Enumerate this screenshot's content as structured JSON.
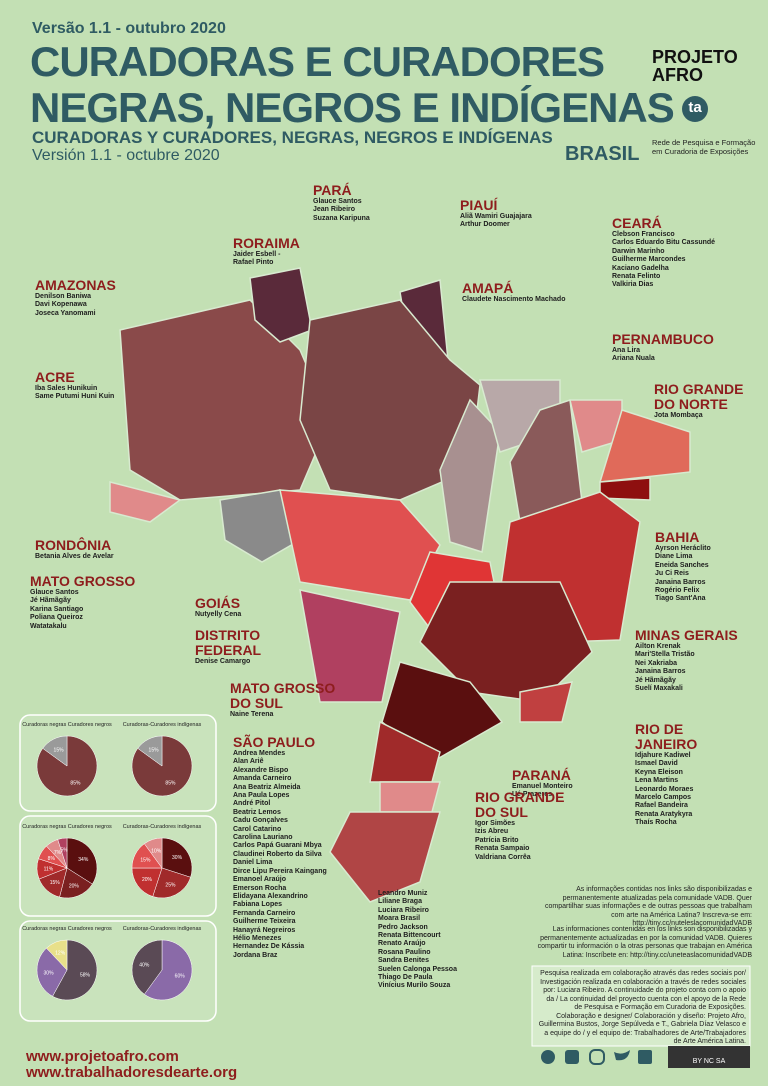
{
  "header": {
    "version_pt": "Versão 1.1 - outubro 2020",
    "title_line1": "CURADORAS E CURADORES",
    "title_line2": "NEGRAS, NEGROS E INDÍGENAS",
    "subtitle_es": "CURADORAS Y CURADORES, NEGRAS, NEGROS E INDÍGENAS",
    "version_es": "Versión 1.1 - octubre 2020",
    "country": "BRASIL",
    "logo": "PROJETO AFRO",
    "ta_logo": "ta",
    "ta_text": "Rede de Pesquisa e Formação em Curadoria de Exposições"
  },
  "states": [
    {
      "name": "PARÁ",
      "people": [
        "Glauce Santos",
        "Jean Ribeiro",
        "Suzana Karipuna"
      ]
    },
    {
      "name": "PIAUÍ",
      "people": [
        "Aliã Wamiri Guajajara",
        "Arthur Doomer"
      ]
    },
    {
      "name": "RORAIMA",
      "people": [
        "Jaider Esbell -",
        "Rafael Pinto"
      ]
    },
    {
      "name": "AMAZONAS",
      "people": [
        "Denilson Baniwa",
        "Davi Kopenawa",
        "Joseca Yanomami"
      ]
    },
    {
      "name": "AMAPÁ",
      "people": [
        "Claudete Nascimento Machado"
      ]
    },
    {
      "name": "CEARÁ",
      "people": [
        "Clebson Francisco",
        "Carlos Eduardo Bitu Cassundé",
        "Darwin Marinho",
        "Guilherme Marcondes",
        "Kaciano Gadelha",
        "Renata Felinto",
        "Valkiria Dias"
      ]
    },
    {
      "name": "PERNAMBUCO",
      "people": [
        "Ana Lira",
        "Ariana Nuala"
      ]
    },
    {
      "name": "RIO GRANDE DO NORTE",
      "people": [
        "Jota Mombaça"
      ]
    },
    {
      "name": "ACRE",
      "people": [
        "Iba Sales Hunikuin",
        "Same Putumi Huni Kuin"
      ]
    },
    {
      "name": "RONDÔNIA",
      "people": [
        "Betania Alves de Avelar"
      ]
    },
    {
      "name": "MATO GROSSO",
      "people": [
        "Glauce Santos",
        "Jé Hãmãgãy",
        "Karina Santiago",
        "Poliana Queiroz",
        "Watatakalu"
      ]
    },
    {
      "name": "GOIÁS",
      "people": [
        "Nutyelly Cena"
      ]
    },
    {
      "name": "DISTRITO FEDERAL",
      "people": [
        "Denise Camargo"
      ]
    },
    {
      "name": "MATO GROSSO DO SUL",
      "people": [
        "Naine Terena"
      ]
    },
    {
      "name": "BAHIA",
      "people": [
        "Ayrson Heráclito",
        "Diane Lima",
        "Eneida Sanches",
        "Ju Ci Reis",
        "Janaina Barros",
        "Rogério Felix",
        "Tiago Sant'Ana"
      ]
    },
    {
      "name": "MINAS GERAIS",
      "people": [
        "Ailton Krenak",
        "Mari'Stella Tristão",
        "Nei Xakriaba",
        "Janaina Barros",
        "Jé Hãmãgãy",
        "Suelí Maxakali"
      ]
    },
    {
      "name": "RIO DE JANEIRO",
      "people": [
        "Idjahure Kadiwel",
        "Ismael David",
        "Keyna Eleison",
        "Lena Martins",
        "Leonardo Moraes",
        "Marcelo Campos",
        "Rafael Bandeira",
        "Renata Aratykyra",
        "Thaís Rocha"
      ]
    },
    {
      "name": "PARANÁ",
      "people": [
        "Emanuel Monteiro",
        "Ué Prazeres"
      ]
    },
    {
      "name": "RIO GRANDE DO SUL",
      "people": [
        "Igor Simões",
        "Izis Abreu",
        "Patrícia Brito",
        "Renata Sampaio",
        "Valdriana Corrêa"
      ]
    },
    {
      "name": "SÃO PAULO",
      "people": [
        "Andrea Mendes",
        "Alan Ariê",
        "Alexandre Bispo",
        "Amanda Carneiro",
        "Ana Beatriz Almeida",
        "Ana Paula Lopes",
        "André Pitol",
        "Beatriz Lemos",
        "Cadu Gonçalves",
        "Carol Catarino",
        "Carolina Lauriano",
        "Carlos Papá Guarani Mbya",
        "Claudinei Roberto da Silva",
        "Daniel Lima",
        "Dirce Lipu Pereira Kaingang",
        "Emanoel Araújo",
        "Emerson Rocha",
        "Elidayana Alexandrino",
        "Fabiana Lopes",
        "Fernanda Carneiro",
        "Guilherme Teixeira",
        "Hanayrá Negreiros",
        "Hélio Menezes",
        "Hernandez De Kássia",
        "Jordana Braz",
        "Leandro Muniz",
        "Liliane Braga",
        "Luciara Ribeiro",
        "Moara Brasil",
        "Pedro Jackson",
        "Renata Bittencourt",
        "Renato Araújo",
        "Rosana Paulino",
        "Sandra Benites",
        "Suelen Calonga Pessoa",
        "Thiago De Paula",
        "Vinícius Murilo Souza"
      ]
    }
  ],
  "pies": [
    {
      "title": "Curadoras negras Curadores negros",
      "values": [
        85,
        15
      ],
      "value_labels": [
        "85%",
        "15%"
      ],
      "colors": [
        "#7a3a3a",
        "#9a9a9a"
      ]
    },
    {
      "title": "Curadoras-Curadores indígenas",
      "values": [
        85,
        15
      ],
      "value_labels": [
        "85%",
        "15%"
      ],
      "colors": [
        "#7a3a3a",
        "#9a9a9a"
      ]
    },
    {
      "title": "Curadoras negras Curadores negros",
      "values": [
        34,
        20,
        15,
        11,
        8,
        7,
        5
      ],
      "value_labels": [
        "34%",
        "20%",
        "15%",
        "11%",
        "8%",
        "7%",
        "5%"
      ],
      "colors": [
        "#5a0f0f",
        "#7a2020",
        "#a02a2a",
        "#c03030",
        "#e05050",
        "#e08a8a",
        "#b04060"
      ]
    },
    {
      "title": "Curadoras-Curadores indígenas",
      "values": [
        30,
        25,
        20,
        15,
        10
      ],
      "value_labels": [
        "30%",
        "25%",
        "20%",
        "15%",
        "10%"
      ],
      "colors": [
        "#5a0f0f",
        "#a02a2a",
        "#c03030",
        "#e05050",
        "#e08a8a"
      ]
    },
    {
      "title": "Curadoras negras Curadores negros",
      "values": [
        58,
        30,
        12
      ],
      "value_labels": [
        "58%",
        "30%",
        "12%"
      ],
      "colors": [
        "#5a4a55",
        "#8a6aa8",
        "#e8e08a"
      ]
    },
    {
      "title": "Curadoras-Curadores indígenas",
      "values": [
        60,
        40
      ],
      "value_labels": [
        "60%",
        "40%"
      ],
      "colors": [
        "#8a6aa8",
        "#5a4a55"
      ]
    }
  ],
  "notes": {
    "pt": "As informações contidas nos links são disponibilizadas e permanentemente atualizadas pela comunidade VADB. Quer compartilhar suas informações e de outras pessoas que trabalham com arte na América Latina? Inscreva-se em: http://tiny.cc/nuteleslacomunidadVADB",
    "es": "Las informaciones contenidas en los links son disponibilizadas y permanentemente actualizadas en por la comunidad VADB. Quieres compartir tu información o la otras personas que trabajan en América Latina: Inscríbete en: http://tiny.cc/uneteaslacomunidadVADB",
    "credits": "Pesquisa realizada em colaboração através das redes sociais por/ Investigación realizada en colaboración a través de redes sociales por: Luciara Ribeiro. A continuidade do projeto conta com o apoio da / La continuidad del proyecto cuenta con el apoyo de la Rede de Pesquisa e Formação em Curadoria de Exposições. Colaboração e designer/ Colaboración y diseño: Projeto Afro, Guillermina Bustos, Jorge Sepúlveda e T., Gabriela Díaz Velasco e a equipe do / y el equipo de: Trabalhadores de Arte/Trabajadores de Arte América Latina."
  },
  "footer": {
    "site1": "www.projetoafro.com",
    "site2": "www.trabalhadoresdearte.org",
    "license": "BY NC SA"
  }
}
